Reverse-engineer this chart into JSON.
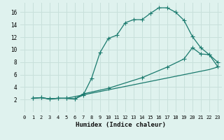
{
  "title": "",
  "xlabel": "Humidex (Indice chaleur)",
  "background_color": "#dff2ee",
  "grid_color": "#c8e0db",
  "line_color": "#1a7a6e",
  "xlim": [
    -0.5,
    23.5
  ],
  "ylim": [
    0,
    17.5
  ],
  "xticks": [
    0,
    1,
    2,
    3,
    4,
    5,
    6,
    7,
    8,
    9,
    10,
    11,
    12,
    13,
    14,
    15,
    16,
    17,
    18,
    19,
    20,
    21,
    22,
    23
  ],
  "yticks": [
    2,
    4,
    6,
    8,
    10,
    12,
    14,
    16
  ],
  "line1_x": [
    1,
    2,
    3,
    4,
    5,
    6,
    7,
    8,
    9,
    10,
    11,
    12,
    13,
    14,
    15,
    16,
    17,
    18,
    19,
    20,
    21,
    22,
    23
  ],
  "line1_y": [
    2.2,
    2.3,
    2.1,
    2.2,
    2.2,
    2.1,
    2.7,
    5.4,
    9.5,
    11.8,
    12.3,
    14.3,
    14.8,
    14.8,
    15.8,
    16.7,
    16.7,
    16.0,
    14.7,
    12.1,
    10.3,
    9.2,
    8.0
  ],
  "line2_x": [
    1,
    2,
    3,
    4,
    5,
    6,
    7,
    10,
    14,
    17,
    19,
    20,
    21,
    22,
    23
  ],
  "line2_y": [
    2.2,
    2.3,
    2.1,
    2.2,
    2.2,
    2.1,
    2.9,
    3.8,
    5.5,
    7.2,
    8.5,
    10.3,
    9.3,
    9.2,
    7.3
  ],
  "line3_x": [
    1,
    2,
    3,
    4,
    5,
    22,
    23
  ],
  "line3_y": [
    2.2,
    2.3,
    2.1,
    2.2,
    2.2,
    6.8,
    7.2
  ],
  "tick_fontsize": 5.0,
  "xlabel_fontsize": 6.5
}
